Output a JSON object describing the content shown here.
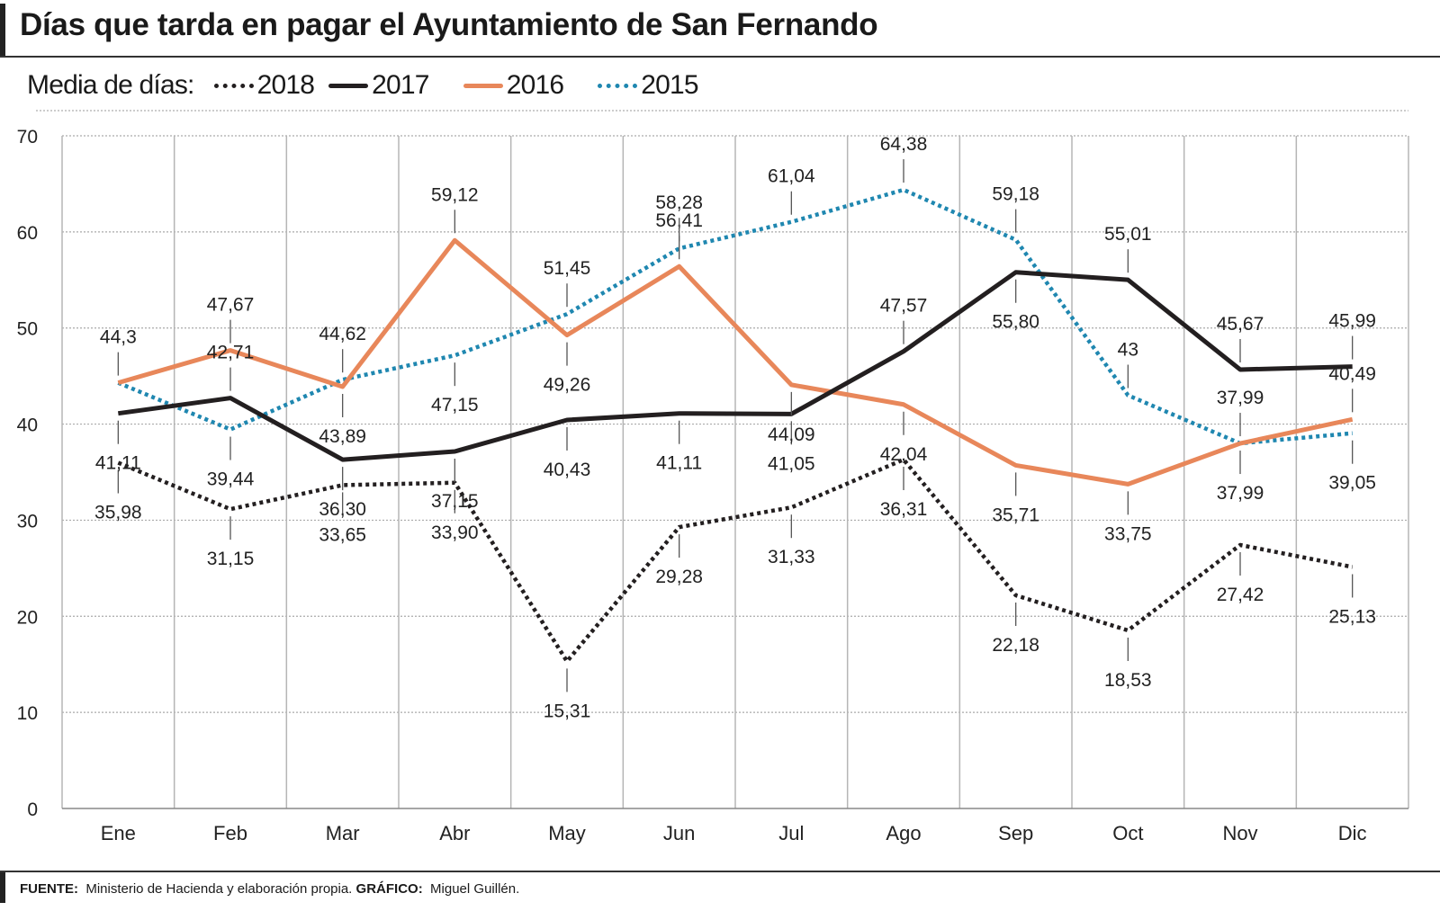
{
  "title": "Días que tarda en pagar el Ayuntamiento de San Fernando",
  "legend_label": "Media de días:",
  "footer": {
    "source_label": "FUENTE:",
    "source": "Ministerio de Hacienda y elaboración propia.",
    "graphic_label": "GRÁFICO:",
    "graphic": "Miguel Guillén."
  },
  "chart_data": {
    "type": "line",
    "title": "Días que tarda en pagar el Ayuntamiento de San Fernando",
    "xlabel": "",
    "ylabel": "",
    "ylim": [
      0,
      70
    ],
    "yticks": [
      0,
      10,
      20,
      30,
      40,
      50,
      60,
      70
    ],
    "grid": true,
    "legend_placement": "top-left",
    "categories": [
      "Ene",
      "Feb",
      "Mar",
      "Abr",
      "May",
      "Jun",
      "Jul",
      "Ago",
      "Sep",
      "Oct",
      "Nov",
      "Dic"
    ],
    "series": [
      {
        "name": "2018",
        "color": "#231f20",
        "style": "dotted",
        "values": [
          35.98,
          31.15,
          33.65,
          33.9,
          15.31,
          29.28,
          31.33,
          36.31,
          22.18,
          18.53,
          27.42,
          25.13
        ],
        "labels": [
          "35,98",
          "31,15",
          "33,65",
          "33,90",
          "15,31",
          "29,28",
          "31,33",
          "36,31",
          "22,18",
          "18,53",
          "27,42",
          "25,13"
        ]
      },
      {
        "name": "2017",
        "color": "#231f20",
        "style": "solid",
        "values": [
          41.11,
          42.71,
          36.3,
          37.15,
          40.43,
          41.11,
          41.05,
          47.57,
          55.8,
          55.01,
          45.67,
          45.99
        ],
        "labels": [
          "41,11",
          "42,71",
          "36,30",
          "37,15",
          "40,43",
          "41,11",
          "41,05",
          "47,57",
          "55,80",
          "55,01",
          "45,67",
          "45,99"
        ]
      },
      {
        "name": "2016",
        "color": "#e8875a",
        "style": "solid",
        "values": [
          44.3,
          47.67,
          43.89,
          59.12,
          49.26,
          56.41,
          44.09,
          42.04,
          35.71,
          33.75,
          37.99,
          40.49
        ],
        "labels": [
          "44,3",
          "47,67",
          "43,89",
          "59,12",
          "49,26",
          "56,41",
          "44,09",
          "42,04",
          "35,71",
          "33,75",
          "37,99",
          "40,49"
        ]
      },
      {
        "name": "2015",
        "color": "#1f87b0",
        "style": "dotted",
        "values": [
          44.3,
          39.44,
          44.62,
          47.15,
          51.45,
          58.28,
          61.04,
          64.38,
          59.18,
          43,
          37.99,
          39.05
        ],
        "labels": [
          "",
          "39,44",
          "44,62",
          "47,15",
          "51,45",
          "58,28",
          "61,04",
          "64,38",
          "59,18",
          "43",
          "37,99",
          "39,05"
        ]
      }
    ]
  }
}
